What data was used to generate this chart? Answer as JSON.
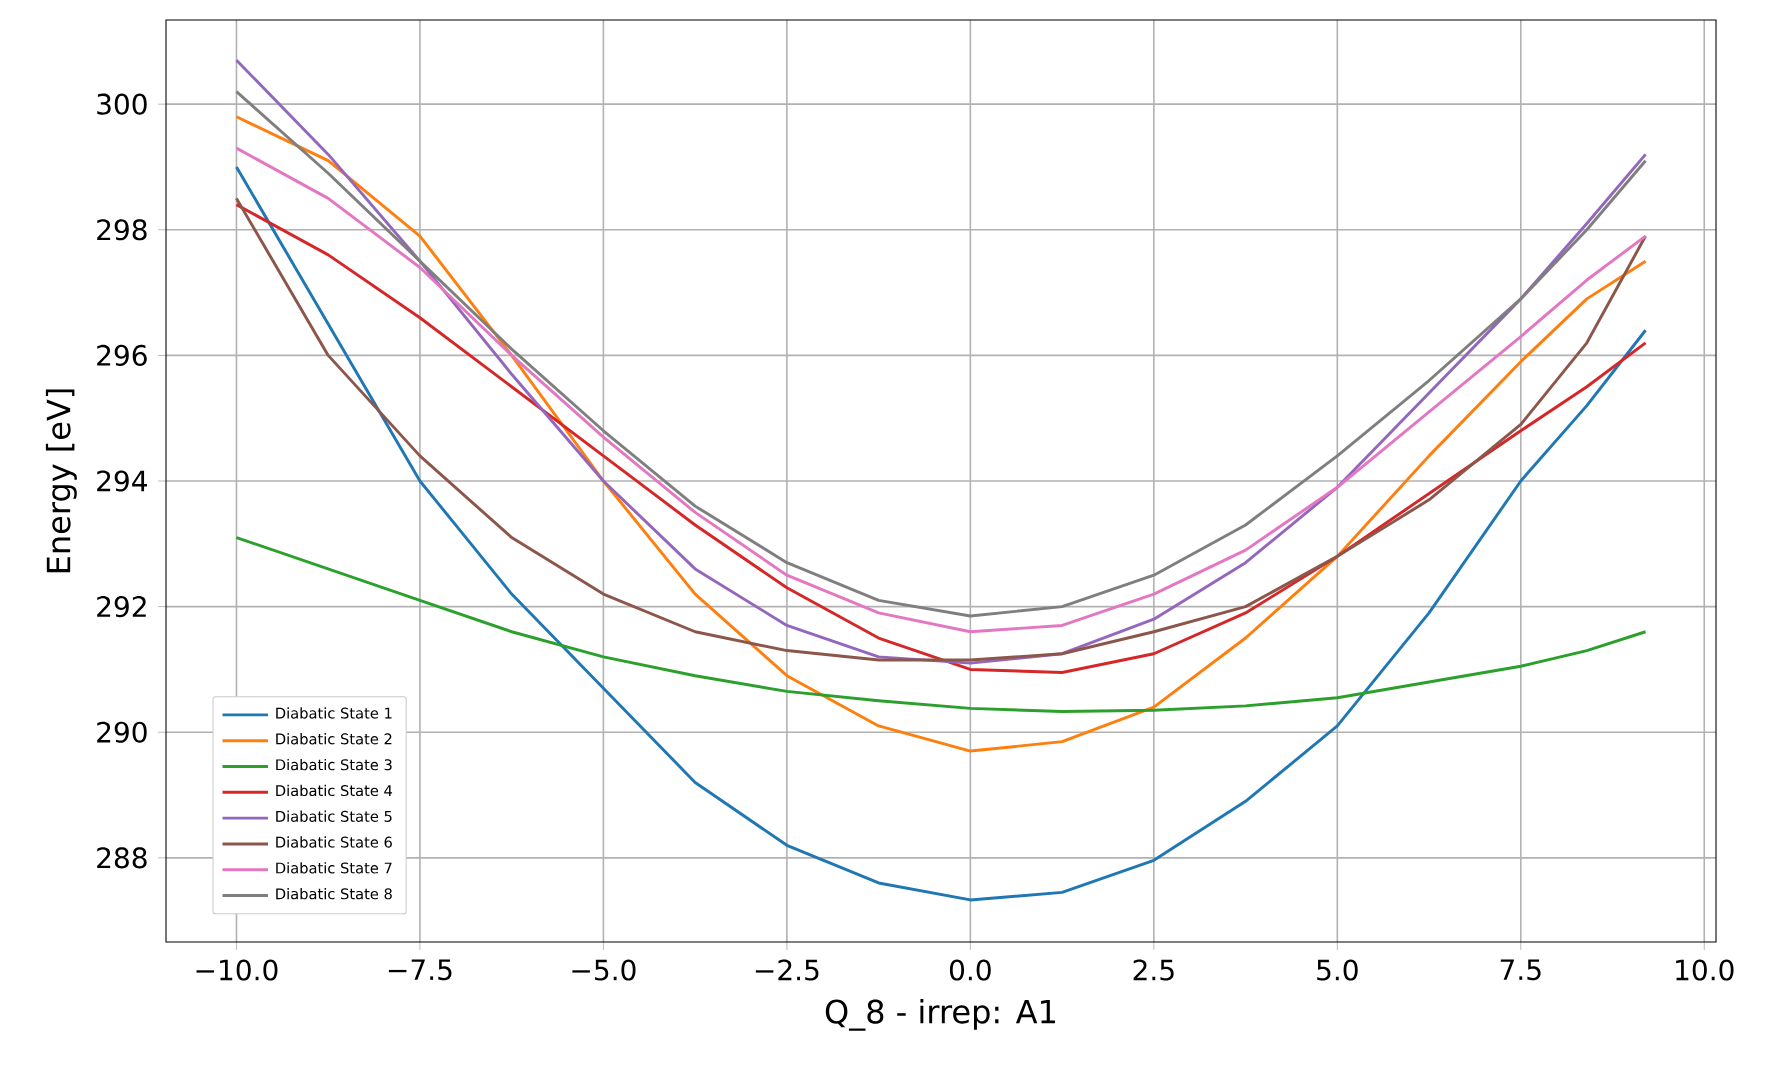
{
  "chart_data": {
    "type": "line",
    "xlabel": "Q_8 - irrep: A1",
    "ylabel": "Energy [eV]",
    "x": [
      -10,
      -8.75,
      -7.5,
      -6.25,
      -5,
      -3.75,
      -2.5,
      -1.25,
      0,
      1.25,
      2.5,
      3.75,
      5,
      6.25,
      7.5,
      8.4,
      9.2
    ],
    "series": [
      {
        "name": "Diabatic State 1",
        "color": "#1f77b4",
        "values": [
          299.0,
          296.5,
          294.0,
          292.2,
          290.7,
          289.2,
          288.2,
          287.6,
          287.33,
          287.45,
          287.96,
          288.9,
          290.1,
          291.9,
          294.0,
          295.2,
          296.4
        ]
      },
      {
        "name": "Diabatic State 2",
        "color": "#ff7f0e",
        "values": [
          299.8,
          299.1,
          297.9,
          296.0,
          294.0,
          292.2,
          290.9,
          290.1,
          289.7,
          289.85,
          290.4,
          291.5,
          292.8,
          294.4,
          295.9,
          296.9,
          297.5
        ]
      },
      {
        "name": "Diabatic State 3",
        "color": "#2ca02c",
        "values": [
          293.1,
          292.6,
          292.1,
          291.6,
          291.2,
          290.9,
          290.65,
          290.5,
          290.38,
          290.33,
          290.35,
          290.42,
          290.55,
          290.8,
          291.05,
          291.3,
          291.6
        ]
      },
      {
        "name": "Diabatic State 4",
        "color": "#d62728",
        "values": [
          298.4,
          297.6,
          296.6,
          295.5,
          294.4,
          293.3,
          292.3,
          291.5,
          291.0,
          290.95,
          291.25,
          291.9,
          292.8,
          293.8,
          294.8,
          295.5,
          296.2
        ]
      },
      {
        "name": "Diabatic State 5",
        "color": "#9467bd",
        "values": [
          300.7,
          299.2,
          297.5,
          295.7,
          294.0,
          292.6,
          291.7,
          291.2,
          291.1,
          291.25,
          291.8,
          292.7,
          293.9,
          295.4,
          296.9,
          298.1,
          299.2
        ]
      },
      {
        "name": "Diabatic State 6",
        "color": "#8c564b",
        "values": [
          298.5,
          296.0,
          294.4,
          293.1,
          292.2,
          291.6,
          291.3,
          291.15,
          291.15,
          291.25,
          291.6,
          292.0,
          292.8,
          293.7,
          294.9,
          296.2,
          297.9
        ]
      },
      {
        "name": "Diabatic State 7",
        "color": "#e377c2",
        "values": [
          299.3,
          298.5,
          297.4,
          296.0,
          294.7,
          293.5,
          292.5,
          291.9,
          291.6,
          291.7,
          292.2,
          292.9,
          293.9,
          295.1,
          296.3,
          297.2,
          297.9
        ]
      },
      {
        "name": "Diabatic State 8",
        "color": "#7f7f7f",
        "values": [
          300.2,
          298.9,
          297.5,
          296.1,
          294.8,
          293.6,
          292.7,
          292.1,
          291.85,
          292.0,
          292.5,
          293.3,
          294.4,
          295.6,
          296.9,
          298.0,
          299.1
        ]
      }
    ],
    "xlim": [
      -10.96,
      10.16
    ],
    "ylim": [
      286.66,
      301.34
    ],
    "xticks": [
      {
        "value": -10,
        "label": "−10.0"
      },
      {
        "value": -7.5,
        "label": "−7.5"
      },
      {
        "value": -5,
        "label": "−5.0"
      },
      {
        "value": -2.5,
        "label": "−2.5"
      },
      {
        "value": 0,
        "label": "0.0"
      },
      {
        "value": 2.5,
        "label": "2.5"
      },
      {
        "value": 5,
        "label": "5.0"
      },
      {
        "value": 7.5,
        "label": "7.5"
      },
      {
        "value": 10,
        "label": "10.0"
      }
    ],
    "yticks": [
      288,
      290,
      292,
      294,
      296,
      298,
      300
    ],
    "grid": true,
    "legend": "bottom left"
  }
}
